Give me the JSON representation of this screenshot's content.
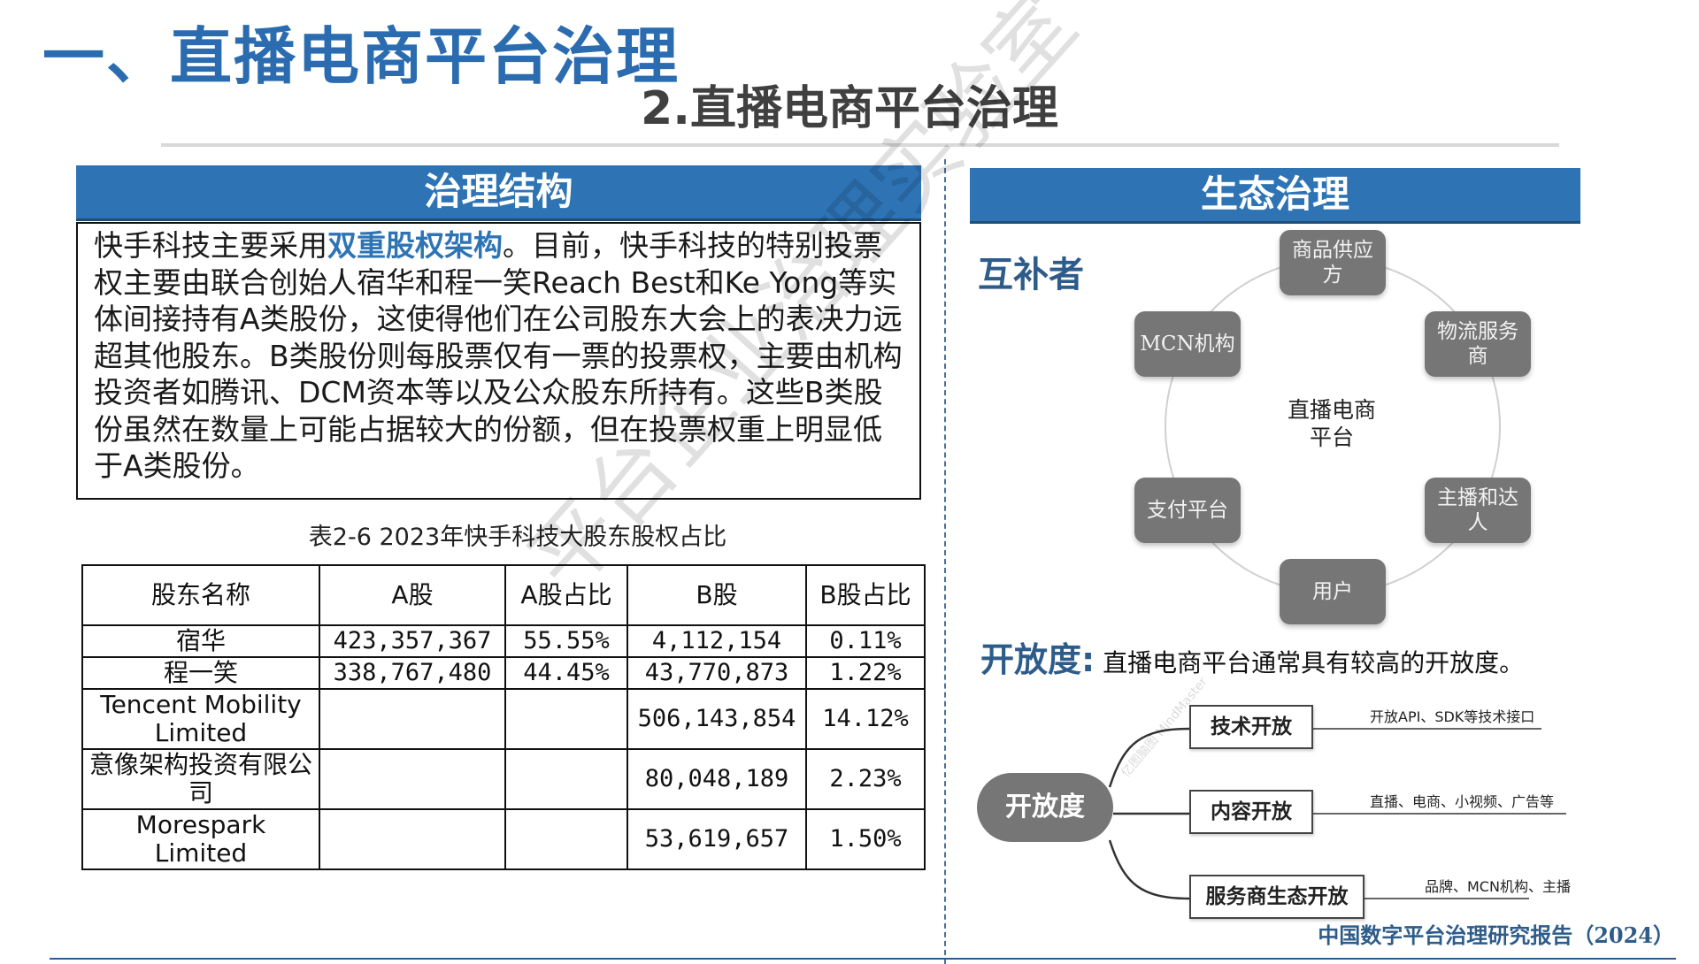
{
  "header": {
    "main_title": "一、直播电商平台治理",
    "sub_title": "2.直播电商平台治理"
  },
  "left": {
    "section_title": "治理结构",
    "intro": {
      "before": "快手科技主要采用",
      "highlight": "双重股权架构",
      "after": "。目前，快手科技的特别投票权主要由联合创始人宿华和程一笑Reach Best和Ke Yong等实体间接持有A类股份，这使得他们在公司股东大会上的表决力远超其他股东。B类股份则每股票仅有一票的投票权，主要由机构投资者如腾讯、DCM资本等以及公众股东所持有。这些B类股份虽然在数量上可能占据较大的份额，但在投票权重上明显低于A类股份。"
    },
    "table_caption": "表2-6 2023年快手科技大股东股权占比",
    "table": {
      "headers": [
        "股东名称",
        "A股",
        "A股占比",
        "B股",
        "B股占比"
      ],
      "rows": [
        [
          "宿华",
          "423,357,367",
          "55.55%",
          "4,112,154",
          "0.11%"
        ],
        [
          "程一笑",
          "338,767,480",
          "44.45%",
          "43,770,873",
          "1.22%"
        ],
        [
          "Tencent Mobility Limited",
          "",
          "",
          "506,143,854",
          "14.12%"
        ],
        [
          "意像架构投资有限公司",
          "",
          "",
          "80,048,189",
          "2.23%"
        ],
        [
          "Morespark Limited",
          "",
          "",
          "53,619,657",
          "1.50%"
        ]
      ]
    }
  },
  "right": {
    "section_title": "生态治理",
    "complement_label": "互补者",
    "ecosystem": {
      "center": "直播电商平台",
      "nodes": {
        "top": "商品供应方",
        "top_right": "物流服务商",
        "bottom_right": "主播和达人",
        "bottom": "用户",
        "bottom_left": "支付平台",
        "top_left": "MCN机构"
      }
    },
    "openness": {
      "label": "开放度:",
      "text": "直播电商平台通常具有较高的开放度。"
    },
    "mindmap": {
      "root": "开放度",
      "branches": [
        {
          "label": "技术开放",
          "detail": "开放API、SDK等技术接口"
        },
        {
          "label": "内容开放",
          "detail": "直播、电商、小视频、广告等"
        },
        {
          "label": "服务商生态开放",
          "detail": "品牌、MCN机构、主播"
        }
      ],
      "badge": "亿图脑图 MindMaster"
    }
  },
  "watermark": "平台企业治理实验室",
  "footer": "中国数字平台治理研究报告（2024）",
  "colors": {
    "accent_blue": "#2e74b5",
    "title_blue": "#2b6cb0",
    "node_gray": "#767676"
  }
}
